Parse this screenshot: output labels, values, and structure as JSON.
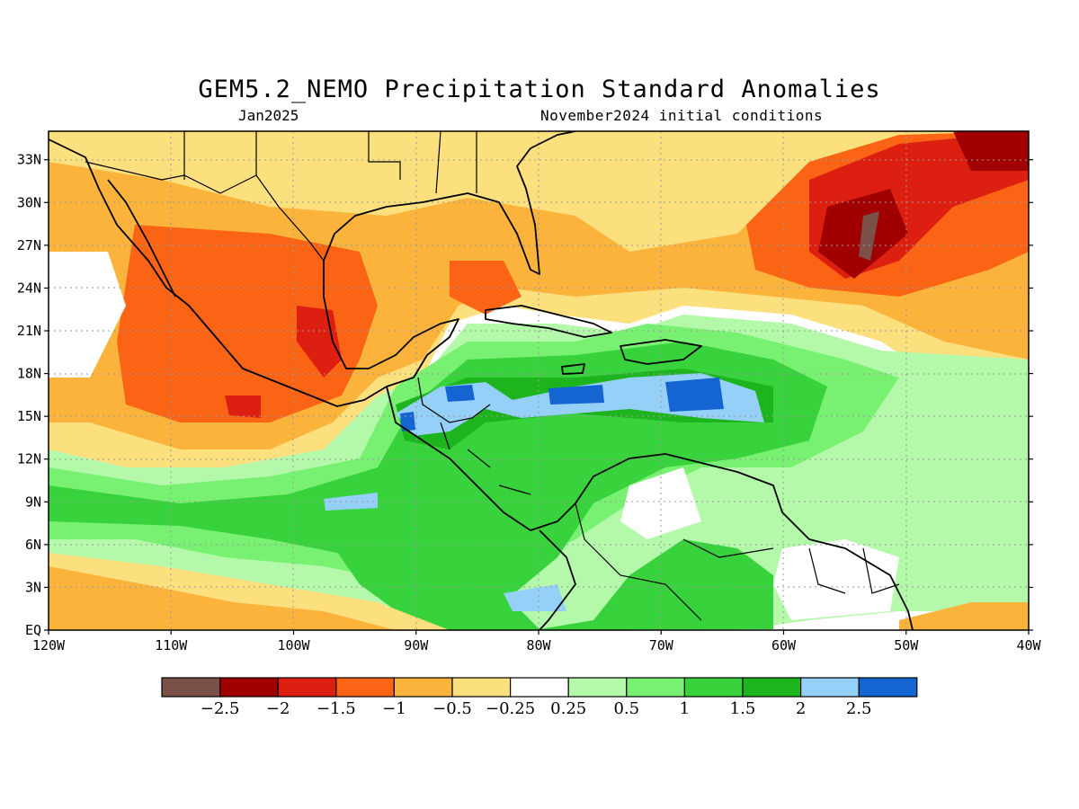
{
  "title": "GEM5.2_NEMO Precipitation Standard Anomalies",
  "subtitle_left": "Jan2025",
  "subtitle_right": "November2024 initial conditions",
  "map": {
    "extent": {
      "lon": [
        -120,
        -40
      ],
      "lat": [
        0,
        35
      ]
    },
    "lat_ticks": [
      {
        "value": 33,
        "label": "33N"
      },
      {
        "value": 30,
        "label": "30N"
      },
      {
        "value": 27,
        "label": "27N"
      },
      {
        "value": 24,
        "label": "24N"
      },
      {
        "value": 21,
        "label": "21N"
      },
      {
        "value": 18,
        "label": "18N"
      },
      {
        "value": 15,
        "label": "15N"
      },
      {
        "value": 12,
        "label": "12N"
      },
      {
        "value": 9,
        "label": "9N"
      },
      {
        "value": 6,
        "label": "6N"
      },
      {
        "value": 3,
        "label": "3N"
      },
      {
        "value": 0,
        "label": "EQ"
      }
    ],
    "lon_ticks": [
      {
        "value": -120,
        "label": "120W"
      },
      {
        "value": -110,
        "label": "110W"
      },
      {
        "value": -100,
        "label": "100W"
      },
      {
        "value": -90,
        "label": "90W"
      },
      {
        "value": -80,
        "label": "80W"
      },
      {
        "value": -70,
        "label": "70W"
      },
      {
        "value": -60,
        "label": "60W"
      },
      {
        "value": -50,
        "label": "50W"
      },
      {
        "value": -40,
        "label": "40W"
      }
    ]
  },
  "colorbar": {
    "colors": [
      "#7a5048",
      "#a00000",
      "#dc1f10",
      "#fa6414",
      "#fbb33c",
      "#fde07e",
      "#ffffff",
      "#b3f9a9",
      "#78f173",
      "#38d23c",
      "#1eb41e",
      "#94d0f8",
      "#1464d2"
    ],
    "labels": [
      "−2.5",
      "−2",
      "−1.5",
      "−1",
      "−0.5",
      "−0.25",
      "0.25",
      "0.5",
      "1",
      "1.5",
      "2",
      "2.5"
    ]
  }
}
